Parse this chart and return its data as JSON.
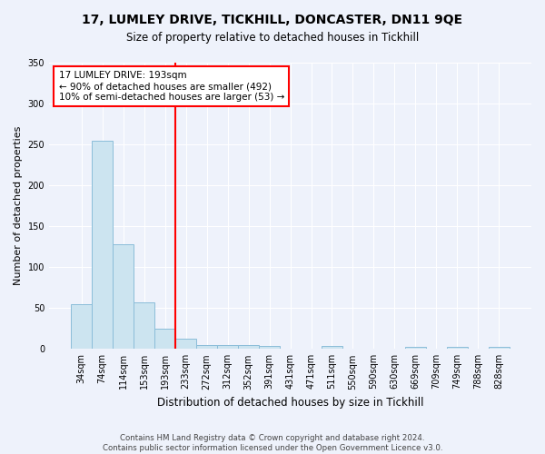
{
  "title": "17, LUMLEY DRIVE, TICKHILL, DONCASTER, DN11 9QE",
  "subtitle": "Size of property relative to detached houses in Tickhill",
  "xlabel": "Distribution of detached houses by size in Tickhill",
  "ylabel": "Number of detached properties",
  "categories": [
    "34sqm",
    "74sqm",
    "114sqm",
    "153sqm",
    "193sqm",
    "233sqm",
    "272sqm",
    "312sqm",
    "352sqm",
    "391sqm",
    "431sqm",
    "471sqm",
    "511sqm",
    "550sqm",
    "590sqm",
    "630sqm",
    "669sqm",
    "709sqm",
    "749sqm",
    "788sqm",
    "828sqm"
  ],
  "values": [
    55,
    255,
    128,
    57,
    25,
    12,
    5,
    5,
    5,
    4,
    0,
    0,
    4,
    0,
    0,
    0,
    3,
    0,
    3,
    0,
    3
  ],
  "bar_color": "#cce4f0",
  "bar_edge_color": "#8bbdd9",
  "red_line_index": 4,
  "annotation_title": "17 LUMLEY DRIVE: 193sqm",
  "annotation_line1": "← 90% of detached houses are smaller (492)",
  "annotation_line2": "10% of semi-detached houses are larger (53) →",
  "footer1": "Contains HM Land Registry data © Crown copyright and database right 2024.",
  "footer2": "Contains public sector information licensed under the Open Government Licence v3.0.",
  "bg_color": "#eef2fb",
  "plot_bg_color": "#eef2fb",
  "ylim": [
    0,
    350
  ],
  "yticks": [
    0,
    50,
    100,
    150,
    200,
    250,
    300,
    350
  ]
}
